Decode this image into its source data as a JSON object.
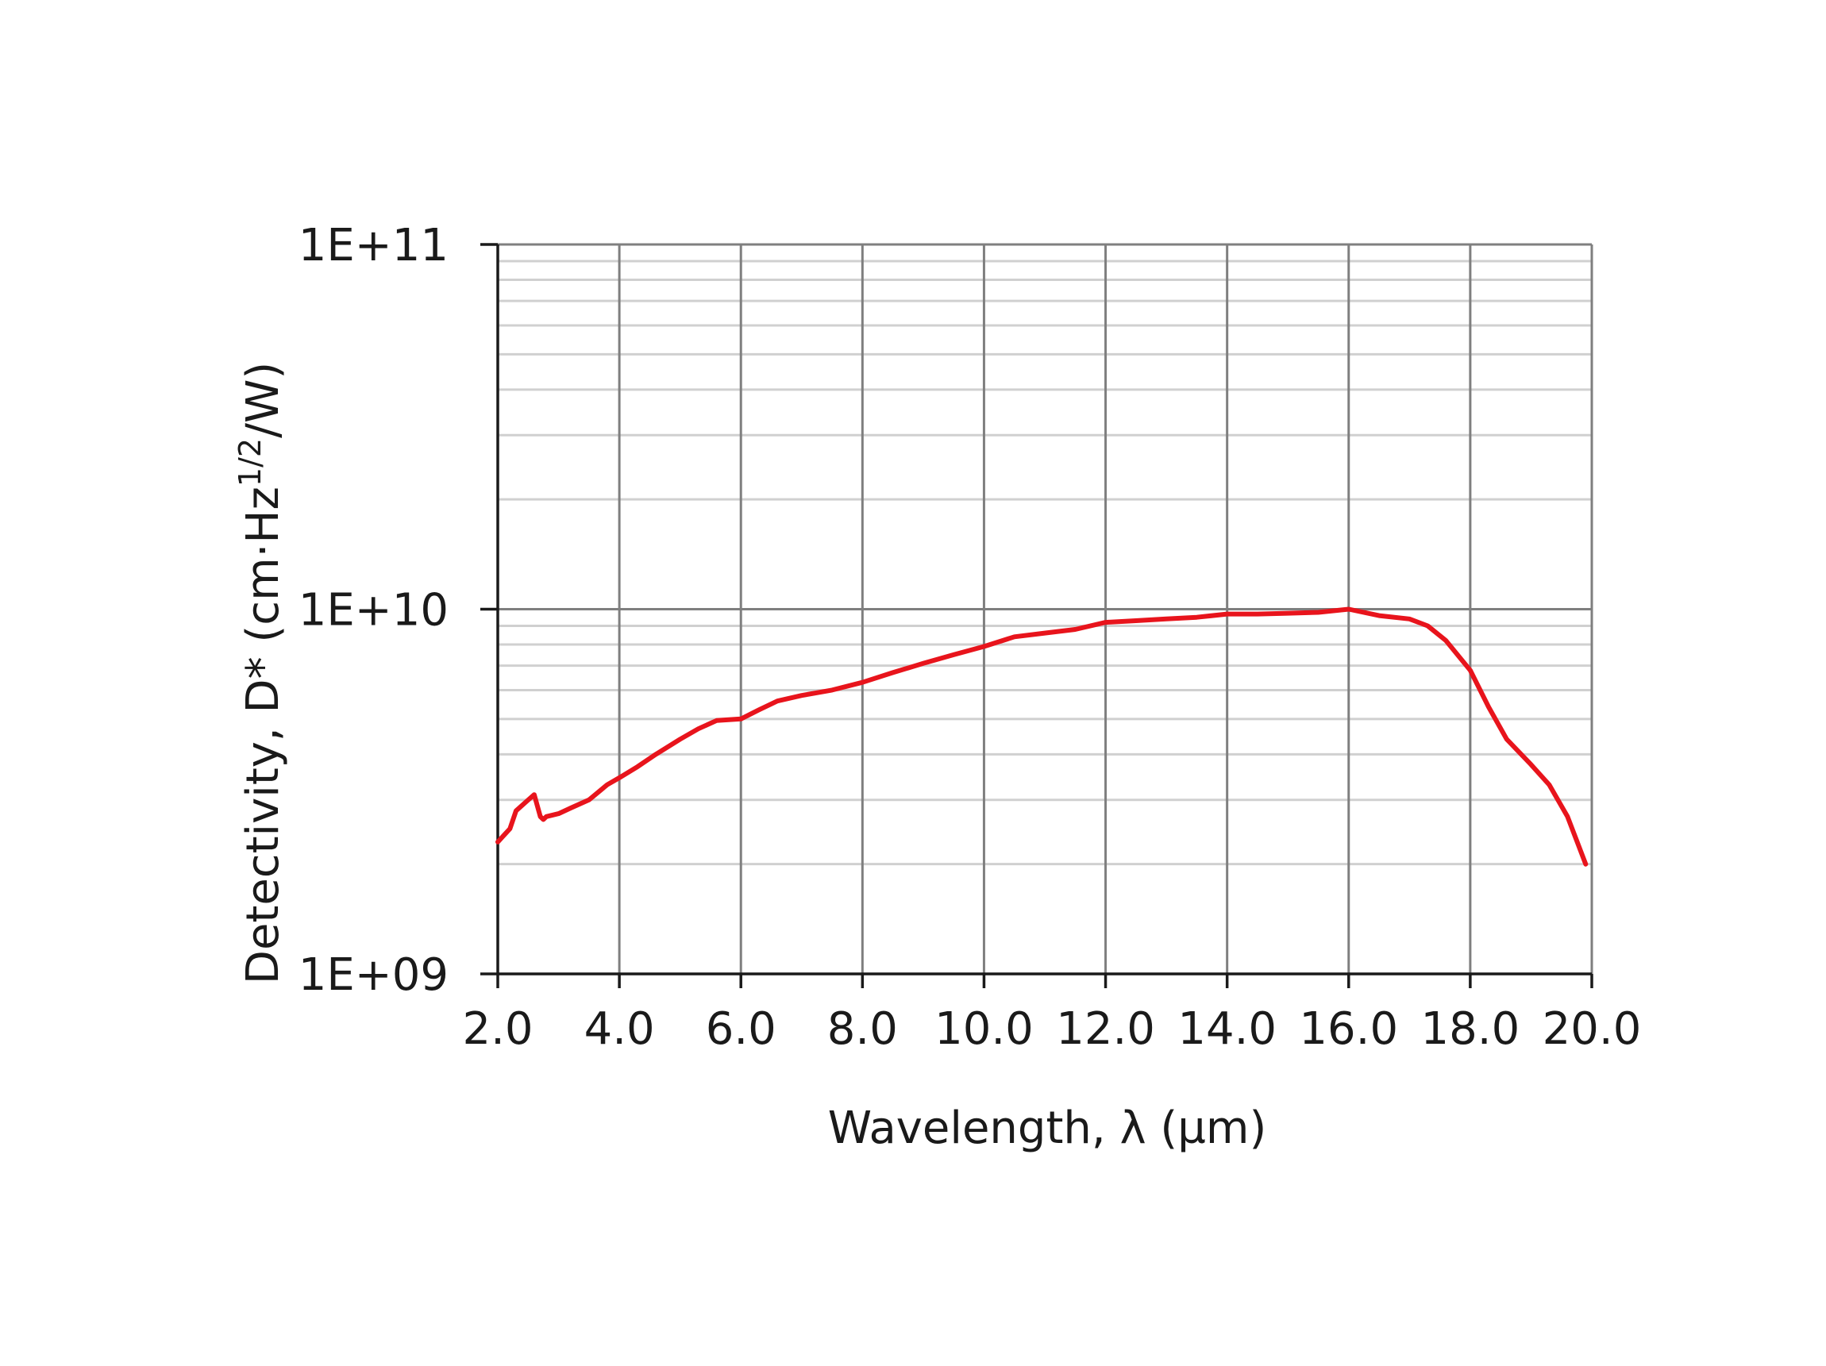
{
  "chart_data": {
    "type": "line",
    "title": "",
    "xlabel": "Wavelength, λ (µm)",
    "ylabel": {
      "main": "Detectivity, D* (cm·Hz",
      "sup": "1/2",
      "tail": "/W)"
    },
    "xlim": [
      2.0,
      20.0
    ],
    "ylim": [
      1000000000.0,
      100000000000.0
    ],
    "yscale": "log",
    "grid": true,
    "x_tick_labels": [
      "2.0",
      "4.0",
      "6.0",
      "8.0",
      "10.0",
      "12.0",
      "14.0",
      "16.0",
      "18.0",
      "20.0"
    ],
    "y_tick_labels": [
      "1E+09",
      "1E+10",
      "1E+11"
    ],
    "colors": {
      "series": "#e8141c",
      "major_grid": "#7f7f7f",
      "minor_grid": "#d0d0d0",
      "axis": "#1a1a1a"
    },
    "series": [
      {
        "x": [
          2.0,
          2.2,
          2.3,
          2.5,
          2.6,
          2.7,
          2.75,
          2.8,
          3.0,
          3.2,
          3.5,
          3.8,
          4.0,
          4.3,
          4.6,
          5.0,
          5.3,
          5.6,
          6.0,
          6.3,
          6.6,
          7.0,
          7.5,
          8.0,
          8.5,
          9.0,
          9.5,
          10.0,
          10.5,
          11.0,
          11.5,
          12.0,
          12.5,
          13.0,
          13.5,
          14.0,
          14.5,
          15.0,
          15.5,
          16.0,
          16.5,
          17.0,
          17.3,
          17.6,
          18.0,
          18.3,
          18.6,
          19.0,
          19.3,
          19.6,
          19.9
        ],
        "y": [
          2300000000.0,
          2500000000.0,
          2800000000.0,
          3000000000.0,
          3100000000.0,
          2700000000.0,
          2650000000.0,
          2700000000.0,
          2750000000.0,
          2850000000.0,
          3000000000.0,
          3300000000.0,
          3450000000.0,
          3700000000.0,
          4000000000.0,
          4400000000.0,
          4700000000.0,
          4950000000.0,
          5000000000.0,
          5300000000.0,
          5600000000.0,
          5800000000.0,
          6000000000.0,
          6300000000.0,
          6700000000.0,
          7100000000.0,
          7500000000.0,
          7900000000.0,
          8400000000.0,
          8600000000.0,
          8800000000.0,
          9200000000.0,
          9300000000.0,
          9400000000.0,
          9500000000.0,
          9700000000.0,
          9700000000.0,
          9750000000.0,
          9800000000.0,
          10000000000.0,
          9600000000.0,
          9400000000.0,
          9000000000.0,
          8200000000.0,
          6800000000.0,
          5400000000.0,
          4400000000.0,
          3750000000.0,
          3300000000.0,
          2700000000.0,
          2000000000.0
        ]
      }
    ]
  }
}
